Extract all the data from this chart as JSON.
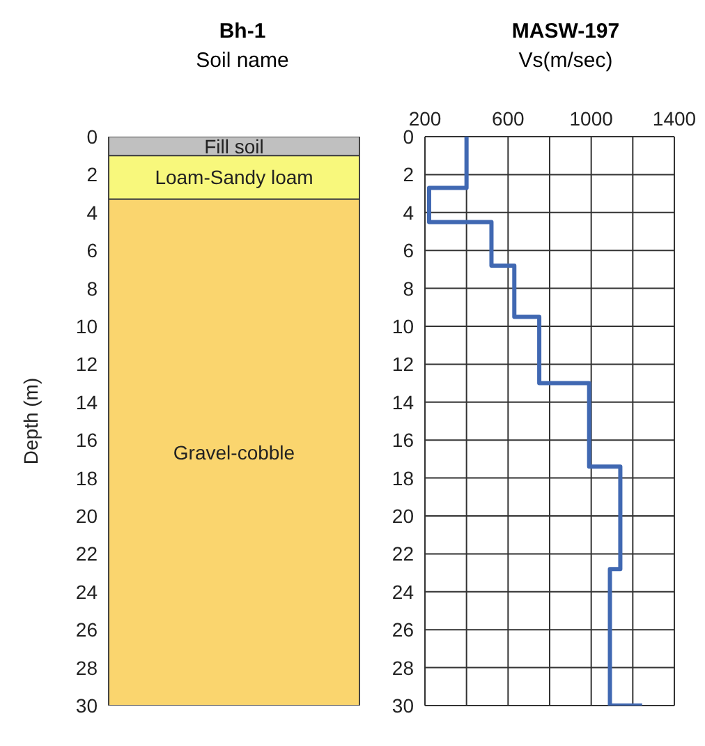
{
  "chart_data": [
    {
      "type": "bar",
      "stacked": true,
      "title": "Bh-1",
      "subtitle": "Soil name",
      "ylabel": "Depth (m)",
      "categories": [
        null
      ],
      "series": [
        {
          "name": "Fill soil",
          "color": "#c0c0c0",
          "values": [
            1.0
          ]
        },
        {
          "name": "Loam-Sandy loam",
          "color": "#f8f87c",
          "values": [
            2.3
          ]
        },
        {
          "name": "Gravel-cobble",
          "color": "#fad56e",
          "values": [
            26.7
          ]
        }
      ],
      "ylim": [
        30,
        0
      ],
      "yticks": [
        0,
        2,
        4,
        6,
        8,
        10,
        12,
        14,
        16,
        18,
        20,
        22,
        24,
        26,
        28,
        30
      ],
      "tick_labels": "y",
      "grid": false,
      "legend": false
    },
    {
      "type": "line",
      "title": "MASW-197",
      "xlabel": "Vs(m/sec)",
      "series": [
        {
          "color": "#4068b2",
          "x": [
            400,
            400,
            220,
            220,
            520,
            520,
            630,
            630,
            750,
            750,
            990,
            990,
            1140,
            1140,
            1090,
            1090,
            1245
          ],
          "values": [
            0,
            2.7,
            2.7,
            4.5,
            4.5,
            6.8,
            6.8,
            9.5,
            9.5,
            13.0,
            13.0,
            17.4,
            17.4,
            22.8,
            22.8,
            30,
            30
          ]
        }
      ],
      "xlim": [
        200,
        1400
      ],
      "xticks": [
        200,
        {
          "value": 400,
          "label": null
        },
        600,
        {
          "value": 800,
          "label": null
        },
        1000,
        {
          "value": 1200,
          "label": null
        },
        1400
      ],
      "ylim": [
        30,
        0
      ],
      "yticks": [
        0,
        2,
        4,
        6,
        8,
        10,
        12,
        14,
        16,
        18,
        20,
        22,
        24,
        26,
        28,
        30
      ],
      "grid": true,
      "marker": "none",
      "line_style": "solid",
      "legend": false
    }
  ]
}
